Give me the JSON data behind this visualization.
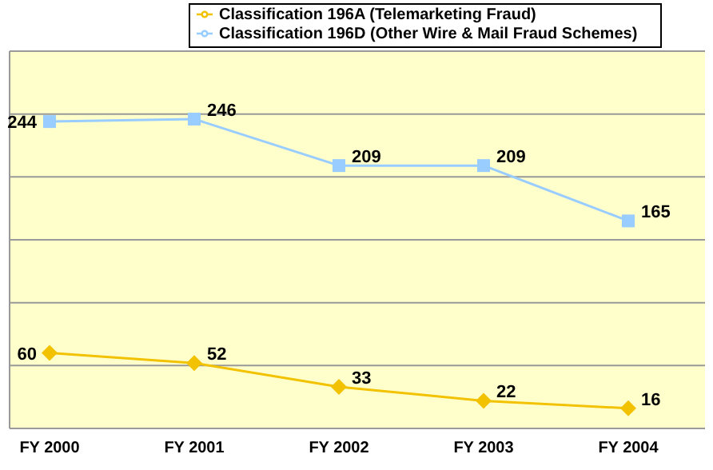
{
  "chart_data": {
    "type": "line",
    "categories": [
      "FY 2000",
      "FY 2001",
      "FY 2002",
      "FY 2003",
      "FY 2004"
    ],
    "series": [
      {
        "name": "Classification 196A (Telemarketing Fraud)",
        "color": "#f2c200",
        "marker": "diamond",
        "values": [
          60,
          52,
          33,
          22,
          16
        ]
      },
      {
        "name": "Classification 196D (Other Wire & Mail Fraud Schemes)",
        "color": "#99ccff",
        "marker": "square",
        "values": [
          244,
          246,
          209,
          209,
          165
        ]
      }
    ],
    "ylim": [
      0,
      300
    ],
    "tick_labels": "x",
    "grid": "y",
    "legend": "top",
    "data_labels": true
  }
}
